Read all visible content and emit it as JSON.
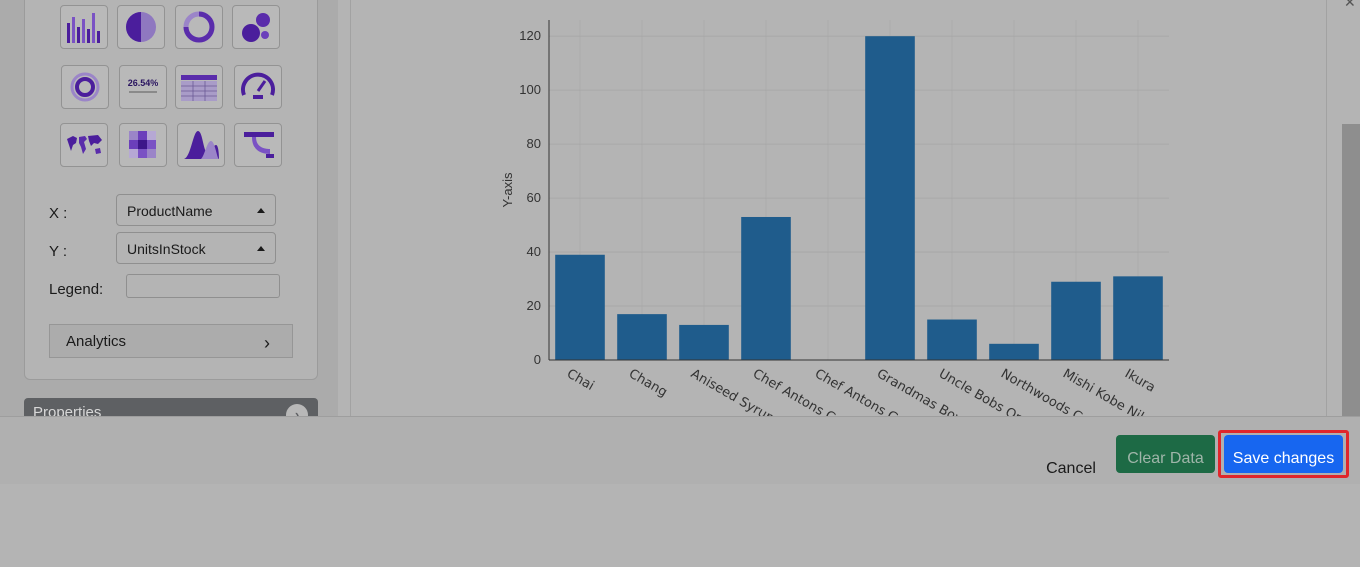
{
  "chart_types": [
    {
      "name": "bar-chart-icon"
    },
    {
      "name": "pie-chart-icon"
    },
    {
      "name": "donut-chart-icon"
    },
    {
      "name": "bubble-chart-icon"
    },
    {
      "name": "radial-chart-icon"
    },
    {
      "name": "kpi-card-icon",
      "text": "26.54%"
    },
    {
      "name": "table-icon"
    },
    {
      "name": "gauge-icon"
    },
    {
      "name": "world-map-icon"
    },
    {
      "name": "heatmap-icon"
    },
    {
      "name": "area-distribution-icon"
    },
    {
      "name": "funnel-icon"
    }
  ],
  "fields": {
    "x_label": "X :",
    "x_value": "ProductName",
    "y_label": "Y :",
    "y_value": "UnitsInStock",
    "legend_label": "Legend:",
    "legend_value": ""
  },
  "analytics": {
    "label": "Analytics",
    "chevron": "›"
  },
  "properties": {
    "label": "Properties"
  },
  "footer": {
    "cancel": "Cancel",
    "clear": "Clear Data",
    "save": "Save changes"
  },
  "colors": {
    "bar": "#1f5c8c",
    "grid": "#a6a6a6",
    "save_button": "#1766f0",
    "clear_button": "#1d6a45",
    "highlight": "#e0262b"
  },
  "chart_data": {
    "type": "bar",
    "ylabel": "Y-axis",
    "xlabel": "",
    "ylim": [
      0,
      126
    ],
    "yticks": [
      0,
      20,
      40,
      60,
      80,
      100,
      120
    ],
    "categories": [
      "Chai",
      "Chang",
      "Aniseed Syrup",
      "Chef Antons Cajun Seasoning",
      "Chef Antons Gumbo Mix",
      "Grandmas Boysenberry Spread",
      "Uncle Bobs Organic Dried Pears",
      "Northwoods Cranberry Sauce",
      "Mishi Kobe Niku",
      "Ikura"
    ],
    "values": [
      39,
      17,
      13,
      53,
      0,
      120,
      15,
      6,
      29,
      31
    ],
    "grid": true
  }
}
